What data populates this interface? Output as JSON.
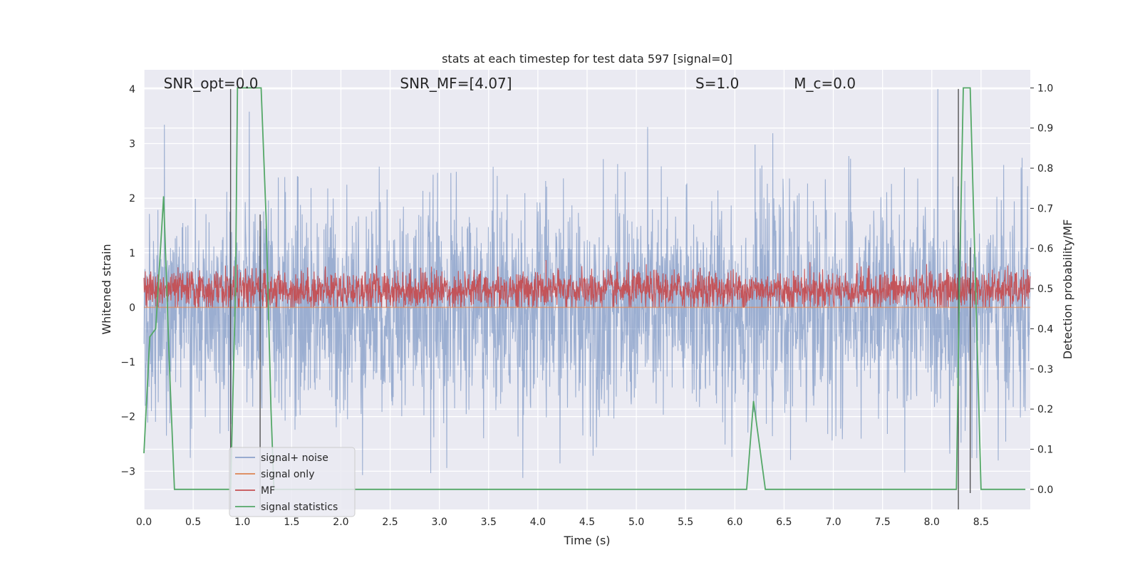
{
  "chart_data": {
    "type": "line",
    "title": "stats at each timestep for test data 597 [signal=0]",
    "xlabel": "Time (s)",
    "ylabel": "Whitened strain",
    "y2label": "Detection probability/MF",
    "xlim": [
      0,
      9.0
    ],
    "ylim": [
      -3.7,
      4.35
    ],
    "y2lim": [
      -0.05,
      1.045
    ],
    "xticks": [
      0.0,
      0.5,
      1.0,
      1.5,
      2.0,
      2.5,
      3.0,
      3.5,
      4.0,
      4.5,
      5.0,
      5.5,
      6.0,
      6.5,
      7.0,
      7.5,
      8.0,
      8.5
    ],
    "yticks": [
      -3,
      -2,
      -1,
      0,
      1,
      2,
      3,
      4
    ],
    "y2ticks": [
      0.0,
      0.1,
      0.2,
      0.3,
      0.4,
      0.5,
      0.6,
      0.7,
      0.8,
      0.9,
      1.0
    ],
    "annotations": [
      {
        "text": "SNR_opt=0.0",
        "x": 0.2
      },
      {
        "text": "SNR_MF=[4.07]",
        "x": 2.6
      },
      {
        "text": "S=1.0",
        "x": 5.6
      },
      {
        "text": "M_c=0.0",
        "x": 6.6
      }
    ],
    "series": [
      {
        "name": "signal+ noise",
        "axis": "left",
        "color": "#4c72b0",
        "kind": "noise",
        "mean": 0.0,
        "std": 1.0,
        "range": [
          -3.4,
          4.0
        ]
      },
      {
        "name": "signal only",
        "axis": "left",
        "color": "#dd8452",
        "kind": "flat",
        "value": 0.0
      },
      {
        "name": "MF",
        "axis": "left",
        "color": "#c44e52",
        "kind": "noise",
        "mean": 0.32,
        "std": 0.18,
        "range": [
          0.0,
          1.0
        ]
      },
      {
        "name": "signal statistics",
        "axis": "right",
        "color": "#55a868",
        "kind": "line",
        "x": [
          0.0,
          0.06,
          0.12,
          0.2,
          0.26,
          0.31,
          0.88,
          0.93,
          0.95,
          1.19,
          1.24,
          1.29,
          1.32,
          6.12,
          6.19,
          6.31,
          8.25,
          8.28,
          8.32,
          8.39,
          8.44,
          8.5,
          8.95
        ],
        "y": [
          0.09,
          0.38,
          0.4,
          0.73,
          0.3,
          0.0,
          0.0,
          0.5,
          1.0,
          1.0,
          0.68,
          0.2,
          0.0,
          0.0,
          0.22,
          0.0,
          0.0,
          0.5,
          1.0,
          1.0,
          0.55,
          0.0,
          0.0
        ]
      }
    ],
    "vlines": [
      {
        "x": 0.88,
        "y": [
          -3.7,
          4.0
        ]
      },
      {
        "x": 1.18,
        "y": [
          -3.7,
          1.7
        ]
      },
      {
        "x": 8.27,
        "y": [
          -3.7,
          4.0
        ]
      },
      {
        "x": 8.39,
        "y": [
          -3.4,
          1.1
        ]
      }
    ],
    "legend": {
      "placement": "lower-left",
      "items": [
        "signal+ noise",
        "signal only",
        "MF",
        "signal statistics"
      ]
    },
    "grid": true,
    "facecolor": "#eaeaf2"
  }
}
